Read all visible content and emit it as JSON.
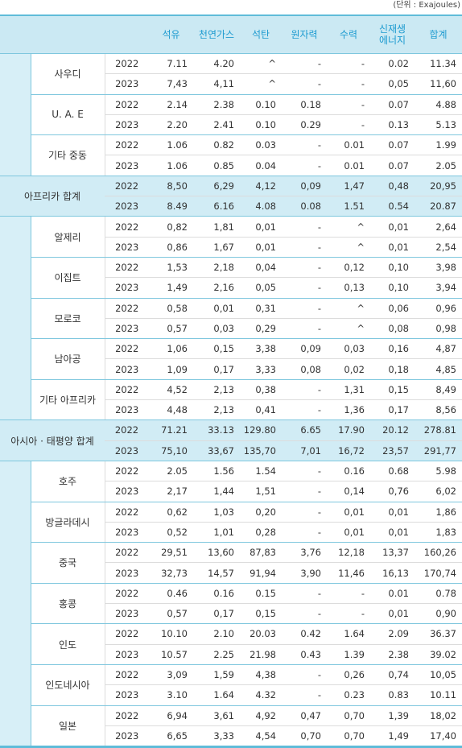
{
  "unit_note": "(단위 : Exajoules)",
  "table": {
    "header": [
      "석유",
      "천연가스",
      "석탄",
      "원자력",
      "수력",
      "신재생\n에너지",
      "합계"
    ],
    "groups": [
      {
        "countries": [
          {
            "name": "사우디",
            "rows": [
              {
                "year": "2022",
                "values": [
                  "7.11",
                  "4.20",
                  "^",
                  "-",
                  "-",
                  "0.02",
                  "11.34"
                ]
              },
              {
                "year": "2023",
                "values": [
                  "7,43",
                  "4,11",
                  "^",
                  "-",
                  "-",
                  "0,05",
                  "11,60"
                ]
              }
            ]
          },
          {
            "name": "U. A. E",
            "rows": [
              {
                "year": "2022",
                "values": [
                  "2.14",
                  "2.38",
                  "0.10",
                  "0.18",
                  "-",
                  "0.07",
                  "4.88"
                ]
              },
              {
                "year": "2023",
                "values": [
                  "2.20",
                  "2.41",
                  "0.10",
                  "0.29",
                  "-",
                  "0.13",
                  "5.13"
                ]
              }
            ]
          },
          {
            "name": "기타 중동",
            "rows": [
              {
                "year": "2022",
                "values": [
                  "1.06",
                  "0.82",
                  "0.03",
                  "-",
                  "0.01",
                  "0.07",
                  "1.99"
                ]
              },
              {
                "year": "2023",
                "values": [
                  "1.06",
                  "0.85",
                  "0.04",
                  "-",
                  "0.01",
                  "0.07",
                  "2.05"
                ]
              }
            ]
          }
        ]
      },
      {
        "total": {
          "name": "아프리카 합계",
          "rows": [
            {
              "year": "2022",
              "values": [
                "8,50",
                "6,29",
                "4,12",
                "0,09",
                "1,47",
                "0,48",
                "20,95"
              ]
            },
            {
              "year": "2023",
              "values": [
                "8.49",
                "6.16",
                "4.08",
                "0.08",
                "1.51",
                "0.54",
                "20.87"
              ]
            }
          ]
        }
      },
      {
        "countries": [
          {
            "name": "알제리",
            "rows": [
              {
                "year": "2022",
                "values": [
                  "0,82",
                  "1,81",
                  "0,01",
                  "-",
                  "^",
                  "0,01",
                  "2,64"
                ]
              },
              {
                "year": "2023",
                "values": [
                  "0,86",
                  "1,67",
                  "0,01",
                  "-",
                  "^",
                  "0,01",
                  "2,54"
                ]
              }
            ]
          },
          {
            "name": "이집트",
            "rows": [
              {
                "year": "2022",
                "values": [
                  "1,53",
                  "2,18",
                  "0,04",
                  "-",
                  "0,12",
                  "0,10",
                  "3,98"
                ]
              },
              {
                "year": "2023",
                "values": [
                  "1,49",
                  "2,16",
                  "0,05",
                  "-",
                  "0,13",
                  "0,10",
                  "3,94"
                ]
              }
            ]
          },
          {
            "name": "모로코",
            "rows": [
              {
                "year": "2022",
                "values": [
                  "0,58",
                  "0,01",
                  "0,31",
                  "-",
                  "^",
                  "0,06",
                  "0,96"
                ]
              },
              {
                "year": "2023",
                "values": [
                  "0,57",
                  "0,03",
                  "0,29",
                  "-",
                  "^",
                  "0,08",
                  "0,98"
                ]
              }
            ]
          },
          {
            "name": "남아공",
            "rows": [
              {
                "year": "2022",
                "values": [
                  "1,06",
                  "0,15",
                  "3,38",
                  "0,09",
                  "0,03",
                  "0,16",
                  "4,87"
                ]
              },
              {
                "year": "2023",
                "values": [
                  "1,09",
                  "0,17",
                  "3,33",
                  "0,08",
                  "0,02",
                  "0,18",
                  "4,85"
                ]
              }
            ]
          },
          {
            "name": "기타 아프리카",
            "rows": [
              {
                "year": "2022",
                "values": [
                  "4,52",
                  "2,13",
                  "0,38",
                  "-",
                  "1,31",
                  "0,15",
                  "8,49"
                ]
              },
              {
                "year": "2023",
                "values": [
                  "4,48",
                  "2,13",
                  "0,41",
                  "-",
                  "1,36",
                  "0,17",
                  "8,56"
                ]
              }
            ]
          }
        ]
      },
      {
        "total": {
          "name": "아시아 · 태평양 합계",
          "rows": [
            {
              "year": "2022",
              "values": [
                "71.21",
                "33.13",
                "129.80",
                "6.65",
                "17.90",
                "20.12",
                "278.81"
              ]
            },
            {
              "year": "2023",
              "values": [
                "75,10",
                "33,67",
                "135,70",
                "7,01",
                "16,72",
                "23,57",
                "291,77"
              ]
            }
          ]
        }
      },
      {
        "countries": [
          {
            "name": "호주",
            "rows": [
              {
                "year": "2022",
                "values": [
                  "2.05",
                  "1.56",
                  "1.54",
                  "-",
                  "0.16",
                  "0.68",
                  "5.98"
                ]
              },
              {
                "year": "2023",
                "values": [
                  "2,17",
                  "1,44",
                  "1,51",
                  "-",
                  "0,14",
                  "0,76",
                  "6,02"
                ]
              }
            ]
          },
          {
            "name": "방글라데시",
            "rows": [
              {
                "year": "2022",
                "values": [
                  "0,62",
                  "1,03",
                  "0,20",
                  "-",
                  "0,01",
                  "0,01",
                  "1,86"
                ]
              },
              {
                "year": "2023",
                "values": [
                  "0,52",
                  "1,01",
                  "0,28",
                  "-",
                  "0,01",
                  "0,01",
                  "1,83"
                ]
              }
            ]
          },
          {
            "name": "중국",
            "rows": [
              {
                "year": "2022",
                "values": [
                  "29,51",
                  "13,60",
                  "87,83",
                  "3,76",
                  "12,18",
                  "13,37",
                  "160,26"
                ]
              },
              {
                "year": "2023",
                "values": [
                  "32,73",
                  "14,57",
                  "91,94",
                  "3,90",
                  "11,46",
                  "16,13",
                  "170,74"
                ]
              }
            ]
          },
          {
            "name": "홍콩",
            "rows": [
              {
                "year": "2022",
                "values": [
                  "0.46",
                  "0.16",
                  "0.15",
                  "-",
                  "-",
                  "0.01",
                  "0.78"
                ]
              },
              {
                "year": "2023",
                "values": [
                  "0,57",
                  "0,17",
                  "0,15",
                  "-",
                  "-",
                  "0,01",
                  "0,90"
                ]
              }
            ]
          },
          {
            "name": "인도",
            "rows": [
              {
                "year": "2022",
                "values": [
                  "10.10",
                  "2.10",
                  "20.03",
                  "0.42",
                  "1.64",
                  "2.09",
                  "36.37"
                ]
              },
              {
                "year": "2023",
                "values": [
                  "10.57",
                  "2.25",
                  "21.98",
                  "0.43",
                  "1.39",
                  "2.38",
                  "39.02"
                ]
              }
            ]
          },
          {
            "name": "인도네시아",
            "rows": [
              {
                "year": "2022",
                "values": [
                  "3,09",
                  "1,59",
                  "4,38",
                  "-",
                  "0,26",
                  "0,74",
                  "10,05"
                ]
              },
              {
                "year": "2023",
                "values": [
                  "3.10",
                  "1.64",
                  "4.32",
                  "-",
                  "0.23",
                  "0.83",
                  "10.11"
                ]
              }
            ]
          },
          {
            "name": "일본",
            "rows": [
              {
                "year": "2022",
                "values": [
                  "6,94",
                  "3,61",
                  "4,92",
                  "0,47",
                  "0,70",
                  "1,39",
                  "18,02"
                ]
              },
              {
                "year": "2023",
                "values": [
                  "6,65",
                  "3,33",
                  "4,54",
                  "0,70",
                  "0,70",
                  "1,49",
                  "17,40"
                ]
              }
            ]
          }
        ]
      }
    ]
  }
}
